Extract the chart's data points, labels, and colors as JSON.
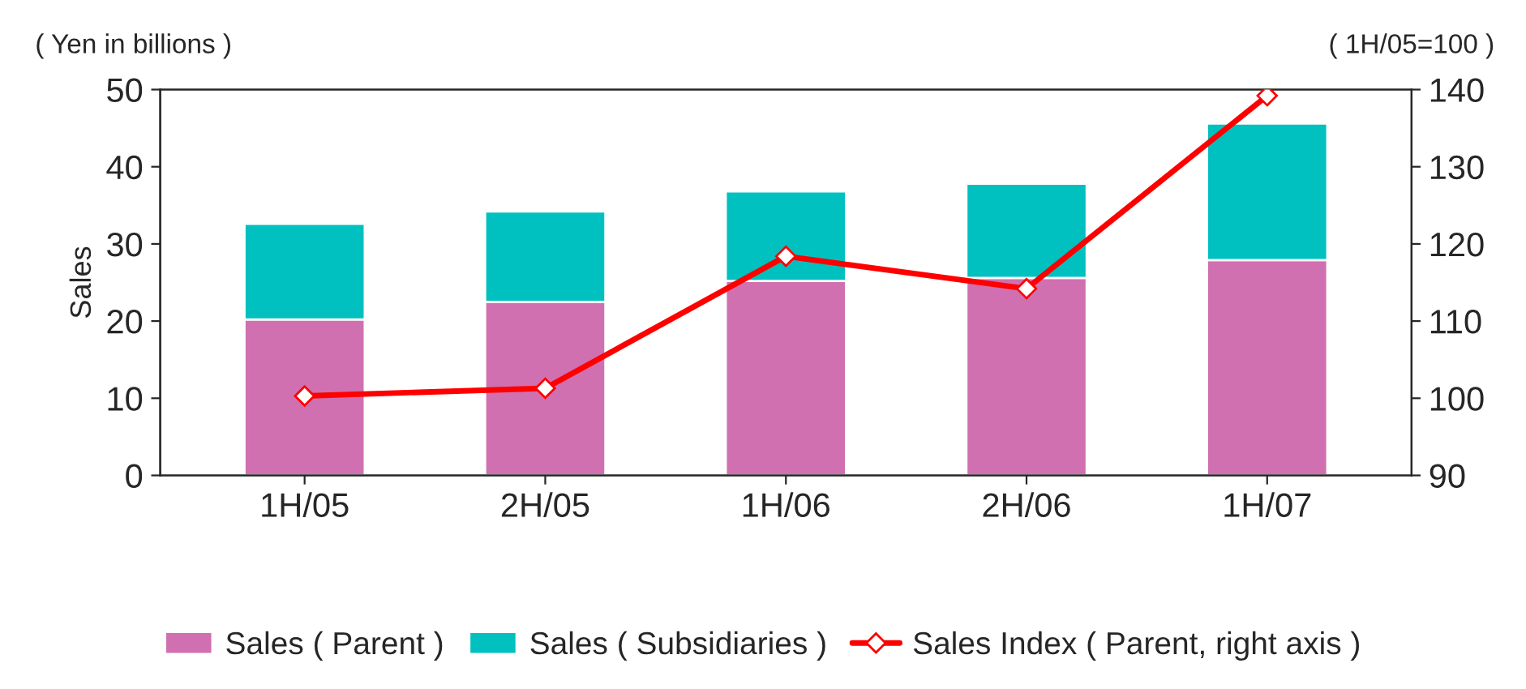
{
  "chart_data": {
    "type": "bar",
    "stacked": true,
    "ylabel": "Sales",
    "y2label": "( 1H/05=100 )",
    "annotations": [
      "( Yen in billions )"
    ],
    "categories": [
      "1H/05",
      "2H/05",
      "1H/06",
      "2H/06",
      "1H/07"
    ],
    "series": [
      {
        "name": "Sales ( Parent )",
        "color": "#d070b0",
        "values": [
          20.2,
          22.5,
          25.2,
          25.6,
          27.9
        ]
      },
      {
        "name": "Sales ( Subsidiaries )",
        "color": "#00c0c0",
        "values": [
          12.4,
          11.7,
          11.6,
          12.2,
          17.7
        ]
      },
      {
        "name": "Sales Index ( Parent, right axis )",
        "type": "line",
        "axis": "y2",
        "color": "#ff0000",
        "marker": "diamond",
        "line_style": "solid",
        "values": [
          100.3,
          101.3,
          118.4,
          114.2,
          139.2
        ]
      }
    ],
    "ylim": [
      0,
      50
    ],
    "yticks": [
      0,
      10,
      20,
      30,
      40,
      50
    ],
    "y2lim": [
      90,
      140
    ],
    "y2ticks": [
      90,
      100,
      110,
      120,
      130,
      140
    ],
    "grid": false,
    "legend": "bottom"
  }
}
